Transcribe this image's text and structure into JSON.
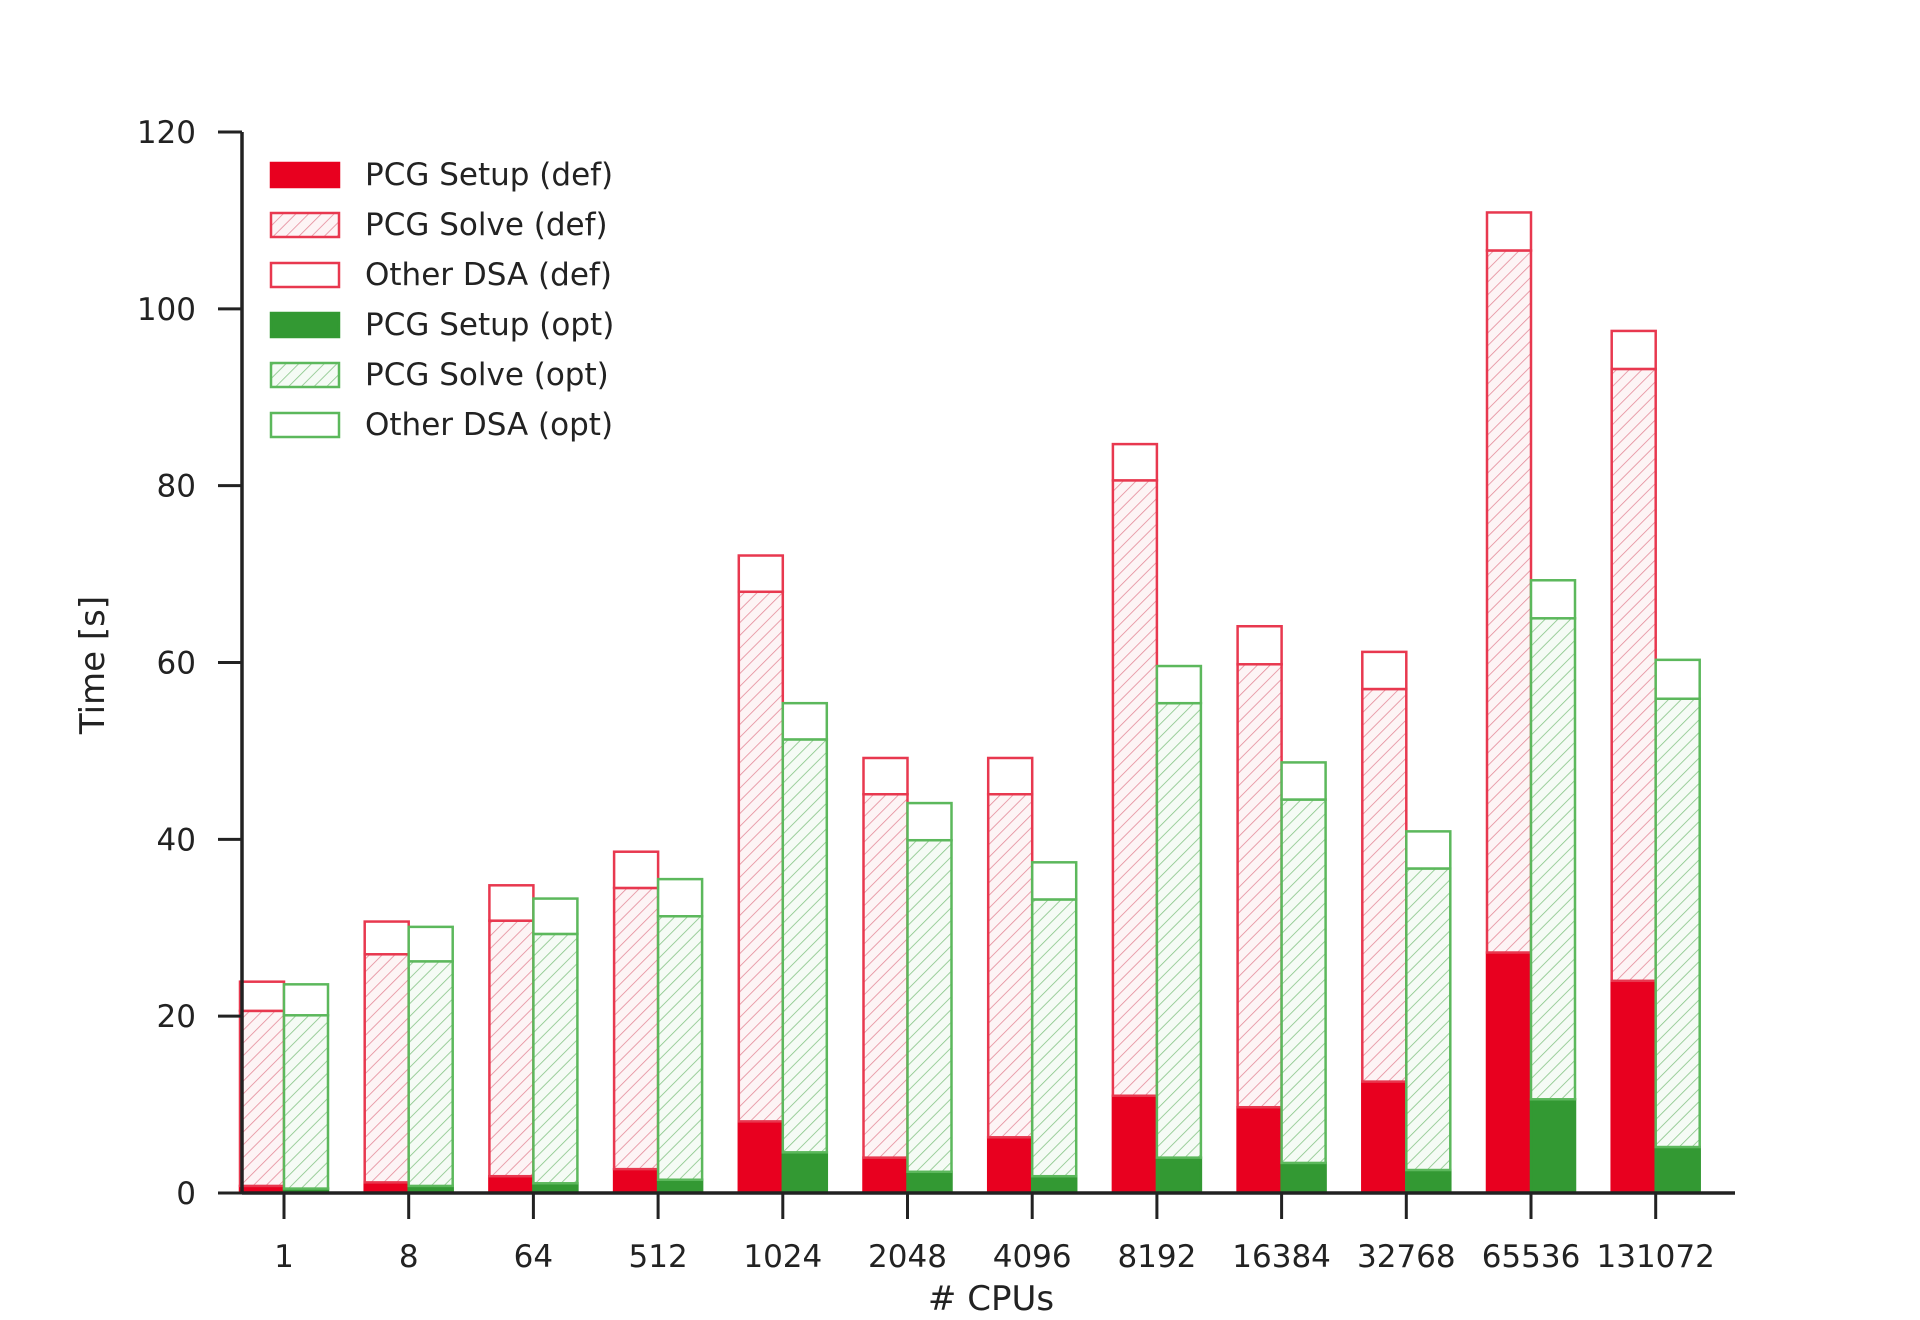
{
  "chart_data": {
    "type": "bar",
    "stacked": true,
    "xlabel": "# CPUs",
    "ylabel": "Time [s]",
    "ylim": [
      0,
      120
    ],
    "yticks": [
      0,
      20,
      40,
      60,
      80,
      100,
      120
    ],
    "categories": [
      "1",
      "8",
      "64",
      "512",
      "1024",
      "2048",
      "4096",
      "8192",
      "16384",
      "32768",
      "65536",
      "131072"
    ],
    "groups": [
      {
        "name": "def",
        "color": "#e8001f",
        "stack": [
          {
            "name": "PCG Setup (def)",
            "style": "solid",
            "values": [
              0.8,
              1.2,
              1.9,
              2.7,
              8.1,
              4.0,
              6.3,
              11.0,
              9.7,
              12.6,
              27.2,
              24.0
            ]
          },
          {
            "name": "PCG Solve (def)",
            "style": "hatched",
            "values": [
              19.8,
              25.8,
              28.9,
              31.8,
              59.9,
              41.1,
              38.8,
              69.6,
              50.1,
              44.4,
              79.4,
              69.2
            ]
          },
          {
            "name": "Other DSA (def)",
            "style": "outline",
            "values": [
              3.3,
              3.7,
              4.0,
              4.1,
              4.1,
              4.1,
              4.1,
              4.1,
              4.3,
              4.2,
              4.3,
              4.3
            ]
          }
        ]
      },
      {
        "name": "opt",
        "color": "#339933",
        "stack": [
          {
            "name": "PCG Setup (opt)",
            "style": "solid",
            "values": [
              0.5,
              0.8,
              1.1,
              1.5,
              4.6,
              2.4,
              1.9,
              4.0,
              3.4,
              2.6,
              10.6,
              5.2
            ]
          },
          {
            "name": "PCG Solve (opt)",
            "style": "hatched",
            "values": [
              19.6,
              25.4,
              28.2,
              29.8,
              46.7,
              37.5,
              31.3,
              51.4,
              41.1,
              34.1,
              54.4,
              50.7
            ]
          },
          {
            "name": "Other DSA (opt)",
            "style": "outline",
            "values": [
              3.5,
              3.9,
              4.0,
              4.2,
              4.1,
              4.2,
              4.2,
              4.2,
              4.2,
              4.2,
              4.3,
              4.4
            ]
          }
        ]
      }
    ],
    "legend": {
      "position": "top-left",
      "entries": [
        {
          "label": "PCG Setup (def)",
          "style": "solid",
          "color": "#e8001f"
        },
        {
          "label": "PCG Solve (def)",
          "style": "hatched",
          "color": "#e8001f"
        },
        {
          "label": "Other DSA (def)",
          "style": "outline",
          "color": "#e8001f"
        },
        {
          "label": "PCG Setup (opt)",
          "style": "solid",
          "color": "#339933"
        },
        {
          "label": "PCG Solve (opt)",
          "style": "hatched",
          "color": "#339933"
        },
        {
          "label": "Other DSA (opt)",
          "style": "outline",
          "color": "#339933"
        }
      ]
    },
    "colors": {
      "def_fill": "#e8001f",
      "def_stroke": "#e8384f",
      "def_hatch": "#eaa0ac",
      "opt_fill": "#339933",
      "opt_stroke": "#5cb85c",
      "opt_hatch": "#9ccf9c",
      "axis": "#222222"
    }
  }
}
